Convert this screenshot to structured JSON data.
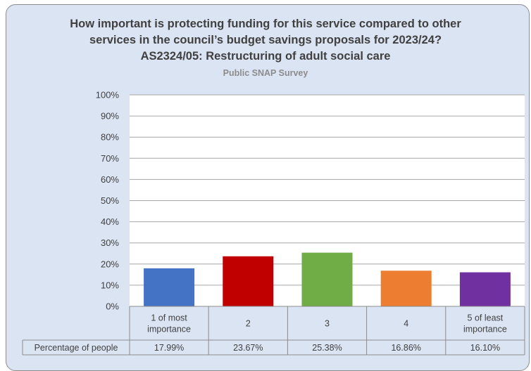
{
  "chart_data": {
    "type": "bar",
    "title_lines": [
      "How important is protecting funding for this service compared to other",
      "services in the council’s budget savings proposals for 2023/24?",
      "AS2324/05:  Restructuring of adult social care"
    ],
    "subtitle": "Public SNAP Survey",
    "categories": [
      [
        "1 of most",
        "importance"
      ],
      [
        "2"
      ],
      [
        "3"
      ],
      [
        "4"
      ],
      [
        "5 of least",
        "importance"
      ]
    ],
    "series": [
      {
        "name": "Percentage of people",
        "values": [
          17.99,
          23.67,
          25.38,
          16.86,
          16.1
        ],
        "value_labels": [
          "17.99%",
          "23.67%",
          "25.38%",
          "16.86%",
          "16.10%"
        ]
      }
    ],
    "bar_colors": [
      "#4472c4",
      "#c00000",
      "#70ad47",
      "#ed7d31",
      "#7030a0"
    ],
    "ylim": [
      0,
      100
    ],
    "yticks": [
      "0%",
      "10%",
      "20%",
      "30%",
      "40%",
      "50%",
      "60%",
      "70%",
      "80%",
      "90%",
      "100%"
    ],
    "grid": true,
    "data_table": true
  }
}
